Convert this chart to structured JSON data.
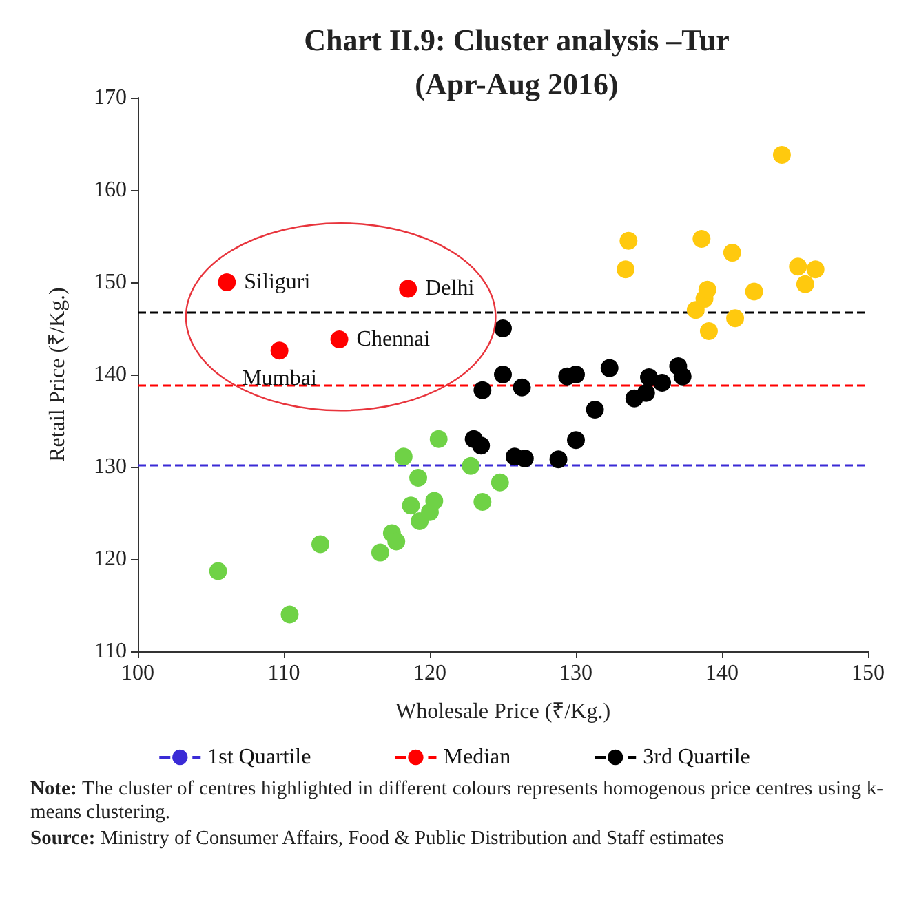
{
  "chart_data": {
    "type": "scatter",
    "title": "Chart II.9: Cluster analysis –Tur\n(Apr-Aug 2016)",
    "xlabel": "Wholesale Price (₹/Kg.)",
    "ylabel": "Retail Price (₹/Kg.)",
    "xlim": [
      100,
      150
    ],
    "xticks": [
      100,
      110,
      120,
      130,
      140,
      150
    ],
    "ylim": [
      110,
      170
    ],
    "yticks": [
      110,
      120,
      130,
      140,
      150,
      160,
      170
    ],
    "grid": false,
    "legend": "bottom",
    "marker": "circle",
    "series": [
      {
        "color": "#ff0000",
        "x": [
          106.1,
          109.7,
          113.8,
          118.5
        ],
        "values": [
          150,
          142.6,
          143.8,
          149.3
        ],
        "value_labels": [
          "Siliguri",
          "Mumbai",
          "Chennai",
          "Delhi"
        ]
      },
      {
        "color": "#000000",
        "x": [
          123.6,
          125,
          125,
          123,
          123.5,
          126.3,
          125.8,
          126.5,
          128.8,
          129.4,
          130,
          130,
          131.3,
          132.3,
          134.0,
          134.8,
          135,
          135.9,
          137,
          137.3
        ],
        "values": [
          138.3,
          145,
          140,
          133,
          132.3,
          138.6,
          131.1,
          130.9,
          130.8,
          139.8,
          140,
          132.9,
          136.2,
          140.7,
          137.4,
          138.0,
          139.7,
          139.1,
          140.9,
          139.8
        ]
      },
      {
        "color": "#ffc90e",
        "x": [
          133.6,
          133.4,
          138.6,
          140.7,
          138.2,
          138.8,
          139,
          139.1,
          140.9,
          142.2,
          144.1,
          145.2,
          145.7,
          146.4
        ],
        "values": [
          154.5,
          151.4,
          154.7,
          153.2,
          147,
          148.2,
          149.2,
          144.7,
          146.1,
          149,
          163.8,
          151.7,
          149.8,
          151.4
        ]
      },
      {
        "color": "#6fd246",
        "x": [
          105.5,
          110.4,
          112.5,
          116.6,
          117.4,
          117.7,
          118.2,
          118.7,
          119.2,
          119.3,
          120.0,
          120.3,
          120.6,
          122.8,
          123.6,
          124.8
        ],
        "values": [
          118.7,
          114,
          121.6,
          120.7,
          122.8,
          121.9,
          131.1,
          125.8,
          128.8,
          124.1,
          125.1,
          126.3,
          133,
          130.1,
          126.2,
          128.3
        ]
      }
    ],
    "ref_lines": [
      {
        "axis": "y",
        "value": 130.2,
        "label": "1st Quartile",
        "color": "#3a2bd6",
        "line_style": "dashed"
      },
      {
        "axis": "y",
        "value": 138.8,
        "label": "Median",
        "color": "#ff0000",
        "line_style": "dashed"
      },
      {
        "axis": "y",
        "value": 146.8,
        "label": "3rd Quartile",
        "color": "#000000",
        "line_style": "dashed"
      }
    ],
    "annotations": [
      "Note: The cluster of centres highlighted in different colours represents homogenous price centres using k-means clustering.",
      "Source: Ministry of Consumer Affairs, Food & Public Distribution and Staff estimates"
    ]
  }
}
